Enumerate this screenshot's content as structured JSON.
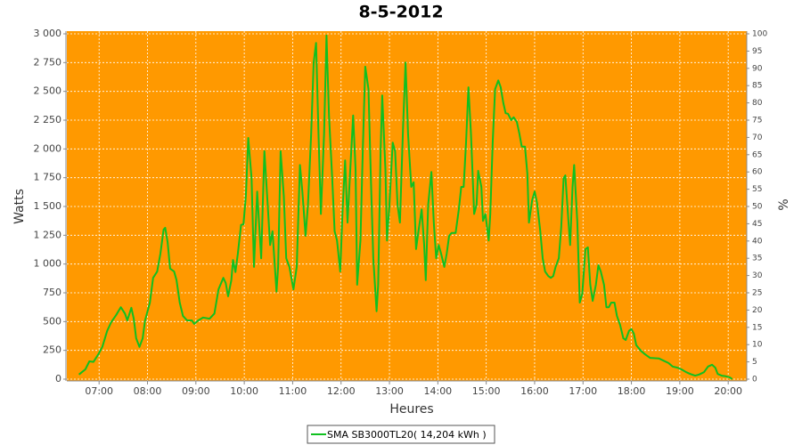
{
  "chart_data": {
    "type": "line",
    "title": "8-5-2012",
    "x_label": "Heures",
    "y_label": "Watts",
    "y2_label": "%",
    "x": [
      "06:35",
      "06:43",
      "06:48",
      "06:53",
      "06:59",
      "07:04",
      "07:10",
      "07:15",
      "07:21",
      "07:27",
      "07:32",
      "07:35",
      "07:40",
      "07:43",
      "07:46",
      "07:50",
      "07:54",
      "07:57",
      "08:03",
      "08:07",
      "08:12",
      "08:16",
      "08:20",
      "08:22",
      "08:25",
      "08:28",
      "08:33",
      "08:36",
      "08:40",
      "08:44",
      "08:49",
      "08:55",
      "08:58",
      "09:03",
      "09:09",
      "09:17",
      "09:23",
      "09:28",
      "09:34",
      "09:37",
      "09:40",
      "09:44",
      "09:46",
      "09:49",
      "09:52",
      "09:56",
      "09:59",
      "10:02",
      "10:05",
      "10:09",
      "10:12",
      "10:16",
      "10:21",
      "10:25",
      "10:29",
      "10:32",
      "10:35",
      "10:40",
      "10:42",
      "10:45",
      "10:49",
      "10:52",
      "10:56",
      "11:01",
      "11:05",
      "11:09",
      "11:12",
      "11:16",
      "11:19",
      "11:23",
      "11:26",
      "11:29",
      "11:32",
      "11:35",
      "11:39",
      "11:42",
      "11:45",
      "11:49",
      "11:52",
      "11:55",
      "11:59",
      "12:02",
      "12:05",
      "12:08",
      "12:12",
      "12:15",
      "12:18",
      "12:20",
      "12:24",
      "12:27",
      "12:30",
      "12:34",
      "12:37",
      "12:40",
      "12:44",
      "12:46",
      "12:49",
      "12:51",
      "12:55",
      "12:57",
      "13:00",
      "13:04",
      "13:07",
      "13:10",
      "13:13",
      "13:17",
      "13:20",
      "13:23",
      "13:27",
      "13:30",
      "13:33",
      "13:36",
      "13:40",
      "13:43",
      "13:45",
      "13:48",
      "13:52",
      "13:55",
      "13:58",
      "14:01",
      "14:04",
      "14:08",
      "14:11",
      "14:14",
      "14:17",
      "14:22",
      "14:26",
      "14:29",
      "14:32",
      "14:35",
      "14:38",
      "14:41",
      "14:45",
      "14:48",
      "14:50",
      "14:54",
      "14:56",
      "14:59",
      "15:03",
      "15:05",
      "15:08",
      "15:11",
      "15:15",
      "15:18",
      "15:21",
      "15:24",
      "15:27",
      "15:31",
      "15:34",
      "15:38",
      "15:41",
      "15:44",
      "15:48",
      "15:51",
      "15:53",
      "15:57",
      "16:00",
      "16:03",
      "16:07",
      "16:10",
      "16:13",
      "16:17",
      "16:20",
      "16:23",
      "16:26",
      "16:30",
      "16:33",
      "16:36",
      "16:38",
      "16:42",
      "16:44",
      "16:47",
      "16:49",
      "16:53",
      "16:56",
      "16:59",
      "17:03",
      "17:06",
      "17:09",
      "17:12",
      "17:16",
      "17:19",
      "17:22",
      "17:26",
      "17:29",
      "17:32",
      "17:35",
      "17:39",
      "17:42",
      "17:46",
      "17:50",
      "17:53",
      "17:57",
      "18:00",
      "18:03",
      "18:06",
      "18:12",
      "18:17",
      "18:23",
      "18:34",
      "18:40",
      "18:46",
      "18:51",
      "18:57",
      "19:02",
      "19:08",
      "19:13",
      "19:19",
      "19:24",
      "19:30",
      "19:35",
      "19:40",
      "19:44",
      "19:47",
      "19:52",
      "19:57",
      "20:02",
      "20:05"
    ],
    "series": [
      {
        "name": "SMA SB3000TL20( 14,204 kWh )",
        "color": "#10c020",
        "values": [
          40,
          85,
          155,
          150,
          215,
          280,
          420,
          495,
          555,
          625,
          570,
          510,
          620,
          525,
          355,
          280,
          355,
          510,
          665,
          880,
          935,
          1090,
          1300,
          1315,
          1190,
          960,
          935,
          860,
          665,
          550,
          510,
          510,
          480,
          510,
          535,
          525,
          570,
          780,
          880,
          835,
          720,
          860,
          1035,
          930,
          1090,
          1340,
          1345,
          1590,
          2095,
          1745,
          975,
          1630,
          1050,
          1980,
          1515,
          1165,
          1285,
          760,
          975,
          1980,
          1590,
          1050,
          975,
          780,
          975,
          1860,
          1630,
          1245,
          1515,
          2135,
          2750,
          2920,
          2135,
          1435,
          2135,
          2985,
          2290,
          1745,
          1285,
          1205,
          935,
          1475,
          1900,
          1360,
          1900,
          2290,
          1825,
          820,
          1205,
          2010,
          2715,
          2520,
          1745,
          1050,
          590,
          820,
          1980,
          2465,
          1825,
          1205,
          1515,
          2055,
          1980,
          1515,
          1360,
          2210,
          2750,
          2135,
          1670,
          1710,
          1130,
          1285,
          1475,
          1165,
          860,
          1515,
          1800,
          1360,
          1050,
          1165,
          1090,
          975,
          1090,
          1245,
          1270,
          1270,
          1475,
          1670,
          1670,
          2055,
          2535,
          2135,
          1435,
          1515,
          1810,
          1670,
          1375,
          1435,
          1205,
          1435,
          2055,
          2520,
          2595,
          2535,
          2405,
          2310,
          2305,
          2250,
          2275,
          2235,
          2135,
          2020,
          2020,
          1785,
          1360,
          1555,
          1630,
          1530,
          1285,
          1050,
          935,
          895,
          880,
          895,
          975,
          1050,
          1320,
          1745,
          1770,
          1360,
          1165,
          1670,
          1860,
          1360,
          665,
          740,
          1130,
          1145,
          820,
          680,
          820,
          990,
          935,
          820,
          625,
          625,
          665,
          665,
          550,
          470,
          355,
          340,
          420,
          435,
          395,
          295,
          245,
          215,
          185,
          180,
          160,
          140,
          110,
          100,
          85,
          60,
          45,
          30,
          40,
          60,
          110,
          125,
          100,
          45,
          30,
          25,
          15,
          0
        ]
      }
    ],
    "xlim": [
      "06:20",
      "20:23"
    ],
    "xticks": [
      "07:00",
      "08:00",
      "09:00",
      "10:00",
      "11:00",
      "12:00",
      "13:00",
      "14:00",
      "15:00",
      "16:00",
      "17:00",
      "18:00",
      "19:00",
      "20:00"
    ],
    "ylim": [
      0,
      3000
    ],
    "yticks": [
      0,
      250,
      500,
      750,
      {
        "value": 1000,
        "label": "1 000"
      },
      {
        "value": 1250,
        "label": "1 250"
      },
      {
        "value": 1500,
        "label": "1 500"
      },
      {
        "value": 1750,
        "label": "1 750"
      },
      {
        "value": 2000,
        "label": "2 000"
      },
      {
        "value": 2250,
        "label": "2 250"
      },
      {
        "value": 2500,
        "label": "2 500"
      },
      {
        "value": 2750,
        "label": "2 750"
      },
      {
        "value": 3000,
        "label": "3 000"
      }
    ],
    "y2lim": [
      0,
      100
    ],
    "y2ticks": [
      0,
      5,
      10,
      15,
      20,
      25,
      30,
      35,
      40,
      45,
      50,
      55,
      60,
      65,
      70,
      75,
      80,
      85,
      90,
      95,
      100
    ],
    "grid": true,
    "background": "#ff9900",
    "legend": "bottom"
  }
}
